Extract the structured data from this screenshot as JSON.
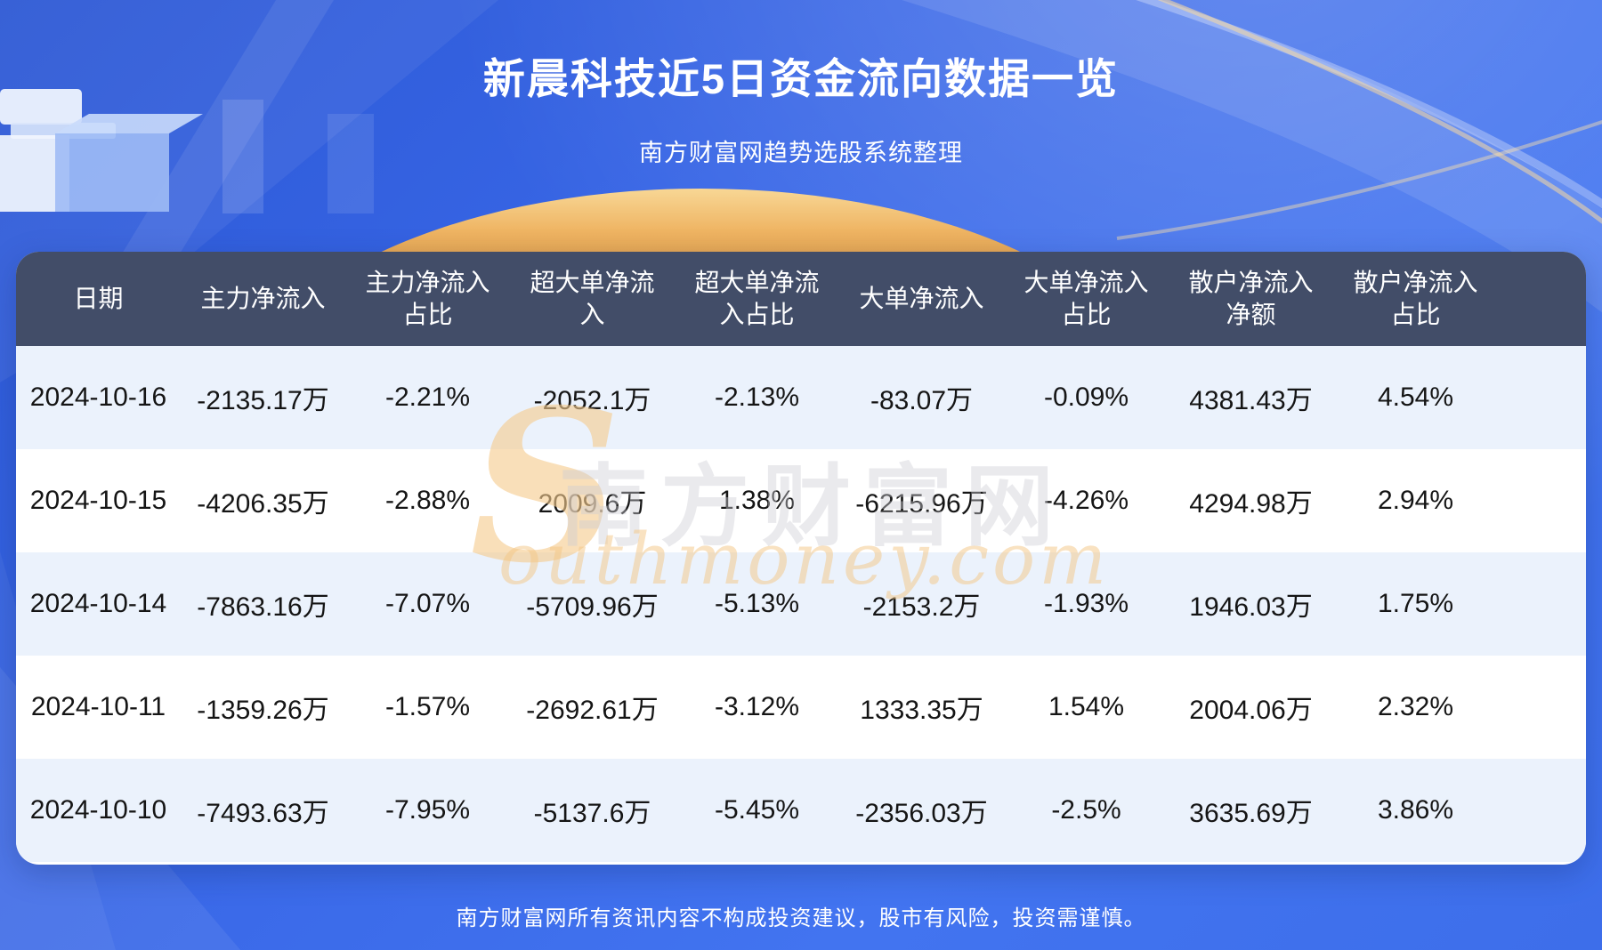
{
  "page": {
    "title": "新晨科技近5日资金流向数据一览",
    "subtitle": "南方财富网趋势选股系统整理",
    "footer": "南方财富网所有资讯内容不构成投资建议，股市有风险，投资需谨慎。"
  },
  "watermark": {
    "swoosh": "S",
    "brand_cn": "南方财富网",
    "brand_en": "outhmoney.com"
  },
  "colors": {
    "background_blue": "#3A6BEC",
    "table_header_bg": "#424D68",
    "row_alt_bg": "#EBF2FC",
    "row_bg": "#FFFFFF",
    "gold_accent": "#EFB564",
    "title_color": "#FFFFFF",
    "body_text": "#151515"
  },
  "chart_data": {
    "type": "table",
    "title": "新晨科技近5日资金流向数据一览",
    "subtitle": "南方财富网趋势选股系统整理",
    "columns": [
      "日期",
      "主力净流入",
      "主力净流入占比",
      "超大单净流入",
      "超大单净流入占比",
      "大单净流入",
      "大单净流入占比",
      "散户净流入净额",
      "散户净流入占比"
    ],
    "rows": [
      [
        "2024-10-16",
        "-2135.17万",
        "-2.21%",
        "-2052.1万",
        "-2.13%",
        "-83.07万",
        "-0.09%",
        "4381.43万",
        "4.54%"
      ],
      [
        "2024-10-15",
        "-4206.35万",
        "-2.88%",
        "2009.6万",
        "1.38%",
        "-6215.96万",
        "-4.26%",
        "4294.98万",
        "2.94%"
      ],
      [
        "2024-10-14",
        "-7863.16万",
        "-7.07%",
        "-5709.96万",
        "-5.13%",
        "-2153.2万",
        "-1.93%",
        "1946.03万",
        "1.75%"
      ],
      [
        "2024-10-11",
        "-1359.26万",
        "-1.57%",
        "-2692.61万",
        "-3.12%",
        "1333.35万",
        "1.54%",
        "2004.06万",
        "2.32%"
      ],
      [
        "2024-10-10",
        "-7493.63万",
        "-7.95%",
        "-5137.6万",
        "-5.45%",
        "-2356.03万",
        "-2.5%",
        "3635.69万",
        "3.86%"
      ]
    ]
  }
}
